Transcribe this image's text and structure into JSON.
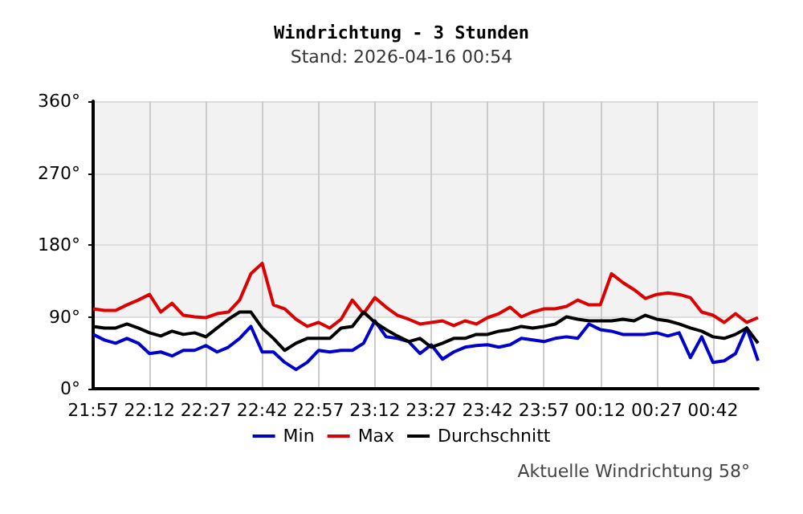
{
  "chart_data": {
    "type": "line",
    "title": "Windrichtung - 3 Stunden",
    "subtitle": "Stand: 2026-04-16 00:54",
    "annotations": [
      "Aktuelle Windrichtung 58°"
    ],
    "x": [
      "2026-04-15T21:57",
      "2026-04-15T22:00",
      "2026-04-15T22:03",
      "2026-04-15T22:06",
      "2026-04-15T22:09",
      "2026-04-15T22:12",
      "2026-04-15T22:15",
      "2026-04-15T22:18",
      "2026-04-15T22:21",
      "2026-04-15T22:24",
      "2026-04-15T22:27",
      "2026-04-15T22:30",
      "2026-04-15T22:33",
      "2026-04-15T22:36",
      "2026-04-15T22:39",
      "2026-04-15T22:42",
      "2026-04-15T22:45",
      "2026-04-15T22:48",
      "2026-04-15T22:51",
      "2026-04-15T22:54",
      "2026-04-15T22:57",
      "2026-04-15T23:00",
      "2026-04-15T23:03",
      "2026-04-15T23:06",
      "2026-04-15T23:09",
      "2026-04-15T23:12",
      "2026-04-15T23:15",
      "2026-04-15T23:18",
      "2026-04-15T23:21",
      "2026-04-15T23:24",
      "2026-04-15T23:27",
      "2026-04-15T23:30",
      "2026-04-15T23:33",
      "2026-04-15T23:36",
      "2026-04-15T23:39",
      "2026-04-15T23:42",
      "2026-04-15T23:45",
      "2026-04-15T23:48",
      "2026-04-15T23:51",
      "2026-04-15T23:54",
      "2026-04-15T23:57",
      "2026-04-16T00:00",
      "2026-04-16T00:03",
      "2026-04-16T00:06",
      "2026-04-16T00:09",
      "2026-04-16T00:12",
      "2026-04-16T00:15",
      "2026-04-16T00:18",
      "2026-04-16T00:21",
      "2026-04-16T00:24",
      "2026-04-16T00:27",
      "2026-04-16T00:30",
      "2026-04-16T00:33",
      "2026-04-16T00:36",
      "2026-04-16T00:39",
      "2026-04-16T00:42",
      "2026-04-16T00:45",
      "2026-04-16T00:48",
      "2026-04-16T00:51",
      "2026-04-16T00:54"
    ],
    "series": [
      {
        "name": "Min",
        "color": "#0000cc",
        "values": [
          68,
          61,
          57,
          63,
          57,
          44,
          46,
          41,
          48,
          48,
          54,
          46,
          52,
          63,
          78,
          46,
          46,
          33,
          24,
          33,
          48,
          46,
          48,
          48,
          57,
          85,
          65,
          63,
          59,
          44,
          55,
          37,
          46,
          52,
          54,
          55,
          52,
          55,
          63,
          61,
          59,
          63,
          65,
          63,
          81,
          74,
          72,
          68,
          68,
          68,
          70,
          66,
          70,
          39,
          65,
          33,
          35,
          44,
          76,
          35
        ]
      },
      {
        "name": "Max",
        "color": "#dd0000",
        "values": [
          100,
          98,
          98,
          105,
          111,
          118,
          96,
          107,
          92,
          90,
          89,
          94,
          96,
          111,
          144,
          157,
          105,
          100,
          87,
          78,
          83,
          76,
          87,
          111,
          94,
          114,
          102,
          92,
          87,
          81,
          83,
          85,
          79,
          85,
          81,
          89,
          94,
          102,
          90,
          96,
          100,
          100,
          103,
          111,
          105,
          105,
          144,
          133,
          124,
          113,
          118,
          120,
          118,
          114,
          96,
          92,
          83,
          94,
          83,
          89
        ]
      },
      {
        "name": "Durchschnitt",
        "color": "#000000",
        "values": [
          78,
          76,
          76,
          81,
          76,
          70,
          66,
          72,
          68,
          70,
          65,
          76,
          87,
          96,
          96,
          76,
          63,
          48,
          57,
          63,
          63,
          63,
          76,
          78,
          96,
          83,
          74,
          66,
          59,
          63,
          52,
          57,
          63,
          63,
          68,
          68,
          72,
          74,
          78,
          76,
          78,
          81,
          90,
          87,
          85,
          85,
          85,
          87,
          85,
          92,
          87,
          85,
          81,
          76,
          72,
          65,
          63,
          68,
          76,
          57
        ]
      }
    ],
    "xlim": [
      "2026-04-15T21:57",
      "2026-04-16T00:54"
    ],
    "xticks": [
      {
        "value": "2026-04-15T21:57",
        "label": "21:57"
      },
      {
        "value": "2026-04-15T22:12",
        "label": "22:12"
      },
      {
        "value": "2026-04-15T22:27",
        "label": "22:27"
      },
      {
        "value": "2026-04-15T22:42",
        "label": "22:42"
      },
      {
        "value": "2026-04-15T22:57",
        "label": "22:57"
      },
      {
        "value": "2026-04-15T23:12",
        "label": "23:12"
      },
      {
        "value": "2026-04-15T23:27",
        "label": "23:27"
      },
      {
        "value": "2026-04-15T23:42",
        "label": "23:42"
      },
      {
        "value": "2026-04-15T23:57",
        "label": "23:57"
      },
      {
        "value": "2026-04-16T00:12",
        "label": "00:12"
      },
      {
        "value": "2026-04-16T00:27",
        "label": "00:27"
      },
      {
        "value": "2026-04-16T00:42",
        "label": "00:42"
      }
    ],
    "ylim": [
      0,
      360
    ],
    "yticks": [
      {
        "value": 0,
        "label": "0°"
      },
      {
        "value": 90,
        "label": "90°"
      },
      {
        "value": 180,
        "label": "180°"
      },
      {
        "value": 270,
        "label": "270°"
      },
      {
        "value": 360,
        "label": "360°"
      }
    ],
    "bands": [
      {
        "axis": "y",
        "from": 90,
        "to": 360,
        "color": "#f2f2f2"
      }
    ],
    "grid": true,
    "legend": "bottom",
    "marker": "none",
    "line_style": "solid"
  }
}
